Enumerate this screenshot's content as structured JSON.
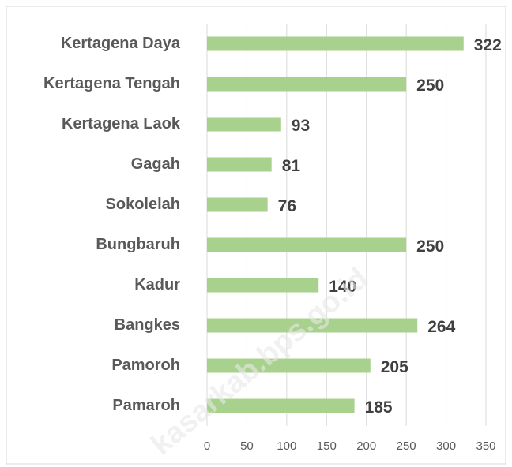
{
  "chart_data": {
    "type": "bar",
    "orientation": "horizontal",
    "categories": [
      "Kertagena Daya",
      "Kertagena Tengah",
      "Kertagena Laok",
      "Gagah",
      "Sokolelah",
      "Bungbaruh",
      "Kadur",
      "Bangkes",
      "Pamoroh",
      "Pamaroh"
    ],
    "values": [
      322,
      250,
      93,
      81,
      76,
      250,
      140,
      264,
      205,
      185
    ],
    "color": "#a9d18e",
    "xlim": [
      0,
      350
    ],
    "xticks": [
      0,
      50,
      100,
      150,
      200,
      250,
      300,
      350
    ],
    "grid": true,
    "watermark": "kasarkab.bps.go.id"
  }
}
